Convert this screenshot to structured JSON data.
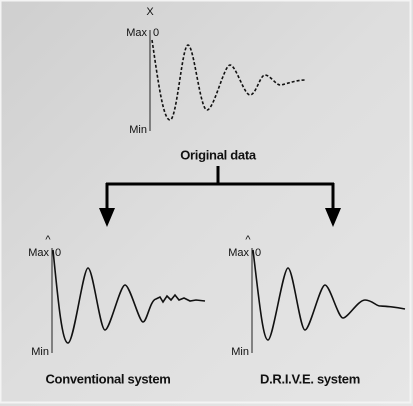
{
  "charts": [
    {
      "axis_label": "X",
      "max": "Max",
      "zero": "0",
      "min": "Min",
      "caption": "Original data"
    },
    {
      "axis_label": "^",
      "max": "Max",
      "zero": "0",
      "min": "Min",
      "caption": "Conventional system"
    },
    {
      "axis_label": "^",
      "max": "Max",
      "zero": "0",
      "min": "Min",
      "caption": "D.R.I.V.E. system"
    }
  ]
}
